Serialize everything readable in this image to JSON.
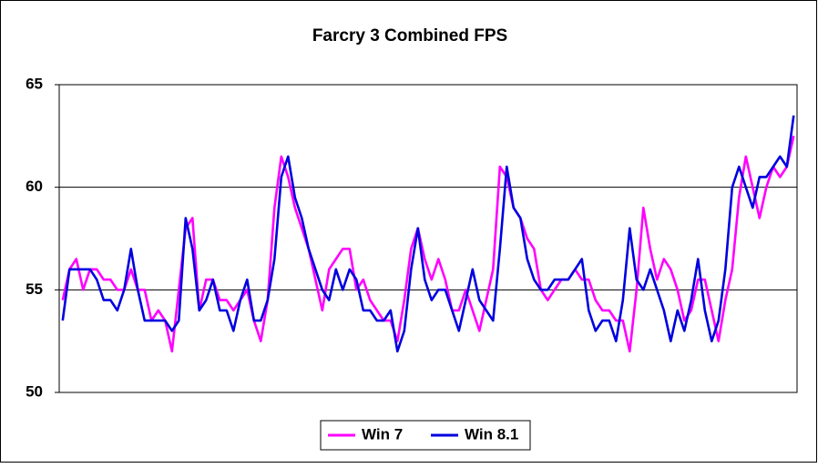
{
  "chart_data": {
    "type": "line",
    "title": "Farcry 3 Combined FPS",
    "series": [
      {
        "name": "Win 7",
        "color": "#ff00ff",
        "values": [
          54.5,
          56,
          56.5,
          55,
          56,
          56,
          55.5,
          55.5,
          55,
          55,
          56,
          55,
          55,
          53.5,
          54,
          53.5,
          52,
          55,
          58,
          58.5,
          54,
          55.5,
          55.5,
          54.5,
          54.5,
          54,
          54.5,
          55,
          53.5,
          52.5,
          54.5,
          59,
          61.5,
          60.5,
          59,
          58,
          57,
          55.5,
          54,
          56,
          56.5,
          57,
          57,
          55,
          55.5,
          54.5,
          54,
          53.5,
          53.5,
          52.5,
          54.5,
          57,
          58,
          56.5,
          55.5,
          56.5,
          55.5,
          54,
          54,
          55,
          54,
          53,
          54.5,
          56,
          61,
          60.5,
          59,
          58.5,
          57.5,
          57,
          55,
          54.5,
          55,
          55.5,
          55.5,
          56,
          55.5,
          55.5,
          54.5,
          54,
          54,
          53.5,
          53.5,
          52,
          55,
          59,
          57,
          55.5,
          56.5,
          56,
          55,
          53.5,
          54,
          55.5,
          55.5,
          54,
          52.5,
          54.5,
          56,
          59.5,
          61.5,
          60,
          58.5,
          60,
          61,
          60.5,
          61,
          62.5
        ]
      },
      {
        "name": "Win 8.1",
        "color": "#0000e0",
        "values": [
          53.5,
          56,
          56,
          56,
          56,
          55.5,
          54.5,
          54.5,
          54,
          55,
          57,
          55,
          53.5,
          53.5,
          53.5,
          53.5,
          53,
          53.5,
          58.5,
          57,
          54,
          54.5,
          55.5,
          54,
          54,
          53,
          54.5,
          55.5,
          53.5,
          53.5,
          54.5,
          56.5,
          60.5,
          61.5,
          59.5,
          58.5,
          57,
          56,
          55,
          54.5,
          56,
          55,
          56,
          55.5,
          54,
          54,
          53.5,
          53.5,
          54,
          52,
          53,
          56,
          58,
          55.5,
          54.5,
          55,
          55,
          54,
          53,
          54.5,
          56,
          54.5,
          54,
          53.5,
          57,
          61,
          59,
          58.5,
          56.5,
          55.5,
          55,
          55,
          55.5,
          55.5,
          55.5,
          56,
          56.5,
          54,
          53,
          53.5,
          53.5,
          52.5,
          54.5,
          58,
          55.5,
          55,
          56,
          55,
          54,
          52.5,
          54,
          53,
          54.5,
          56.5,
          54,
          52.5,
          53.5,
          56,
          60,
          61,
          60,
          59,
          60.5,
          60.5,
          61,
          61.5,
          61,
          63.5
        ]
      }
    ],
    "ylim": [
      50,
      65
    ],
    "yticks": [
      50,
      55,
      60,
      65
    ],
    "grid": true,
    "legend": "bottom"
  }
}
